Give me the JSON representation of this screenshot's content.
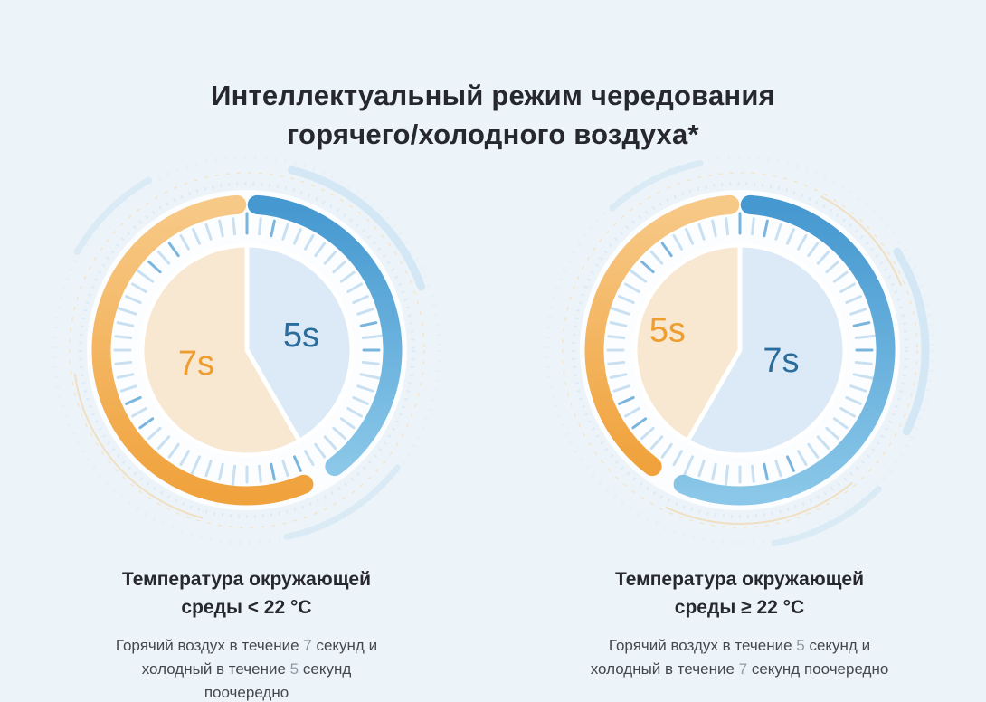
{
  "title": {
    "line1": "Интеллектуальный режим чередования",
    "line2": "горячего/холодного воздуха*"
  },
  "colors": {
    "background": "#edf4f9",
    "title_text": "#26282d",
    "body_text": "#44484d",
    "muted_digit": "#8e9aa6",
    "hot": "#f0a23c",
    "hot_light": "#f7c987",
    "cold": "#4598d0",
    "cold_light": "#8ac7e8",
    "hot_fill": "#f8e7d1",
    "cold_fill": "#dbeaf6",
    "hot_label": "#ee9d2f",
    "cold_label": "#2a6d9c",
    "tick": "#c8e0f1",
    "tick_dark": "#7ab5de"
  },
  "chart_data": [
    {
      "type": "pie",
      "ambient_condition": "< 22 °C",
      "heading_lines": [
        "Температура окружающей",
        "среды < 22 °C"
      ],
      "slices": [
        {
          "name": "cold",
          "label": "5s",
          "seconds": 5
        },
        {
          "name": "hot",
          "label": "7s",
          "seconds": 7
        }
      ],
      "description_lines": [
        [
          {
            "text": "Горячий воздух в течение "
          },
          {
            "text": "7",
            "muted": true
          },
          {
            "text": " секунд и"
          }
        ],
        [
          {
            "text": "холодный в течение "
          },
          {
            "text": "5",
            "muted": true
          },
          {
            "text": " секунд"
          }
        ],
        [
          {
            "text": "поочередно"
          }
        ]
      ]
    },
    {
      "type": "pie",
      "ambient_condition": "≥ 22 °C",
      "heading_lines": [
        "Температура окружающей",
        "среды ≥ 22 °C"
      ],
      "slices": [
        {
          "name": "cold",
          "label": "7s",
          "seconds": 7
        },
        {
          "name": "hot",
          "label": "5s",
          "seconds": 5
        }
      ],
      "description_lines": [
        [
          {
            "text": "Горячий воздух в течение "
          },
          {
            "text": "5",
            "muted": true
          },
          {
            "text": " секунд и"
          }
        ],
        [
          {
            "text": "холодный в течение "
          },
          {
            "text": "7",
            "muted": true
          },
          {
            "text": " секунд поочередно"
          }
        ]
      ]
    }
  ]
}
